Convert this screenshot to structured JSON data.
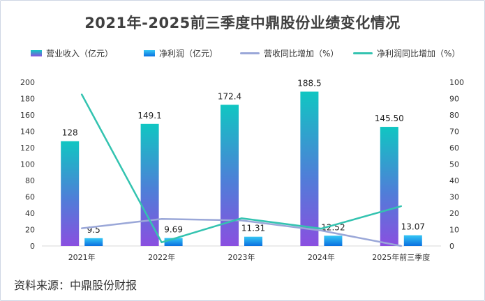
{
  "title": "2021年-2025前三季度中鼎股份业绩变化情况",
  "source": "资料来源：中鼎股份财报",
  "colors": {
    "revenue_top": "#10c6c2",
    "revenue_bottom": "#8a4fe0",
    "profit_top": "#35c6f4",
    "profit_bottom": "#0a6fe0",
    "revenue_growth": "#9aa7d8",
    "profit_growth": "#33c3b0"
  },
  "chart_data": {
    "type": "bar",
    "categories": [
      "2021年",
      "2022年",
      "2023年",
      "2024年",
      "2025年前三季度"
    ],
    "series": [
      {
        "name": "营业收入（亿元）",
        "kind": "bar",
        "axis": "left",
        "values": [
          128,
          149.1,
          172.4,
          188.5,
          145.5
        ],
        "labels": [
          "128",
          "149.1",
          "172.4",
          "188.5",
          "145.50"
        ]
      },
      {
        "name": "净利润（亿元）",
        "kind": "bar",
        "axis": "left",
        "values": [
          9.5,
          9.69,
          11.31,
          12.52,
          13.07
        ],
        "labels": [
          "9.5",
          "9.69",
          "11.31",
          "12.52",
          "13.07"
        ]
      },
      {
        "name": "营收同比增加（%）",
        "kind": "line",
        "axis": "right",
        "values": [
          10.8,
          16.5,
          15.6,
          9.4,
          0
        ]
      },
      {
        "name": "净利润同比增加（%）",
        "kind": "line",
        "axis": "right",
        "values": [
          92.5,
          2.2,
          16.9,
          10.6,
          24.3
        ]
      }
    ],
    "ylim_left": [
      0,
      200
    ],
    "yticks_left": [
      0,
      20,
      40,
      60,
      80,
      100,
      120,
      140,
      160,
      180,
      200
    ],
    "ylim_right": [
      0,
      100
    ],
    "yticks_right": [
      0,
      10,
      20,
      30,
      40,
      50,
      60,
      70,
      80,
      90,
      100
    ],
    "grid": false,
    "legend_position": "top"
  }
}
